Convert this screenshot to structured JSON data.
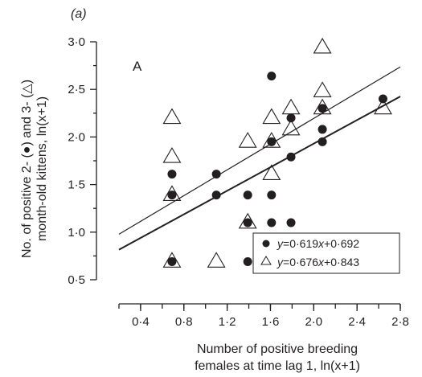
{
  "panel_tag": "(a)",
  "chart_data": {
    "type": "scatter",
    "title": "",
    "panel_letter": "A",
    "xlabel_line1": "Number of positive breeding",
    "xlabel_line2": "females at time lag 1, ln(x+1)",
    "ylabel_line1": "No. of positive 2- (●) and 3- (△)",
    "ylabel_line2": "month-old kittens, ln(x+1)",
    "xlim": [
      0.2,
      2.8
    ],
    "ylim": [
      0.5,
      3.0
    ],
    "x_ticks": [
      "0·4",
      "0·8",
      "1·2",
      "1·6",
      "2·0",
      "2·4",
      "2·8"
    ],
    "x_tick_values": [
      0.4,
      0.8,
      1.2,
      1.6,
      2.0,
      2.4,
      2.8
    ],
    "y_ticks": [
      "0·5",
      "1·0",
      "1·5",
      "2·0",
      "2·5",
      "3·0"
    ],
    "y_tick_values": [
      0.5,
      1.0,
      1.5,
      2.0,
      2.5,
      3.0
    ],
    "grid": false,
    "legend_position": "bottom-right",
    "series": [
      {
        "name": "y=0·619x+0·692",
        "marker": "circle",
        "color": "#231f20",
        "regression": {
          "slope": 0.619,
          "intercept": 0.692
        },
        "points": [
          [
            0.69,
            1.61
          ],
          [
            0.69,
            1.39
          ],
          [
            0.69,
            0.69
          ],
          [
            1.1,
            1.61
          ],
          [
            1.1,
            1.39
          ],
          [
            1.39,
            1.39
          ],
          [
            1.39,
            1.1
          ],
          [
            1.39,
            0.69
          ],
          [
            1.61,
            2.64
          ],
          [
            1.61,
            1.95
          ],
          [
            1.61,
            1.39
          ],
          [
            1.61,
            1.1
          ],
          [
            1.79,
            2.2
          ],
          [
            1.79,
            1.79
          ],
          [
            1.79,
            1.1
          ],
          [
            2.08,
            2.3
          ],
          [
            2.08,
            2.08
          ],
          [
            2.08,
            1.95
          ],
          [
            2.64,
            2.4
          ]
        ]
      },
      {
        "name": "y=0·676x+0·843",
        "marker": "triangle",
        "color": "#231f20",
        "regression": {
          "slope": 0.676,
          "intercept": 0.843
        },
        "points": [
          [
            0.69,
            2.2
          ],
          [
            0.69,
            1.79
          ],
          [
            0.69,
            1.39
          ],
          [
            0.69,
            0.69
          ],
          [
            1.1,
            0.69
          ],
          [
            1.39,
            1.95
          ],
          [
            1.39,
            1.1
          ],
          [
            1.61,
            2.2
          ],
          [
            1.61,
            1.95
          ],
          [
            1.61,
            1.61
          ],
          [
            1.79,
            2.3
          ],
          [
            1.79,
            2.08
          ],
          [
            2.08,
            2.94
          ],
          [
            2.08,
            2.48
          ],
          [
            2.08,
            2.3
          ],
          [
            2.64,
            2.3
          ]
        ]
      }
    ]
  }
}
